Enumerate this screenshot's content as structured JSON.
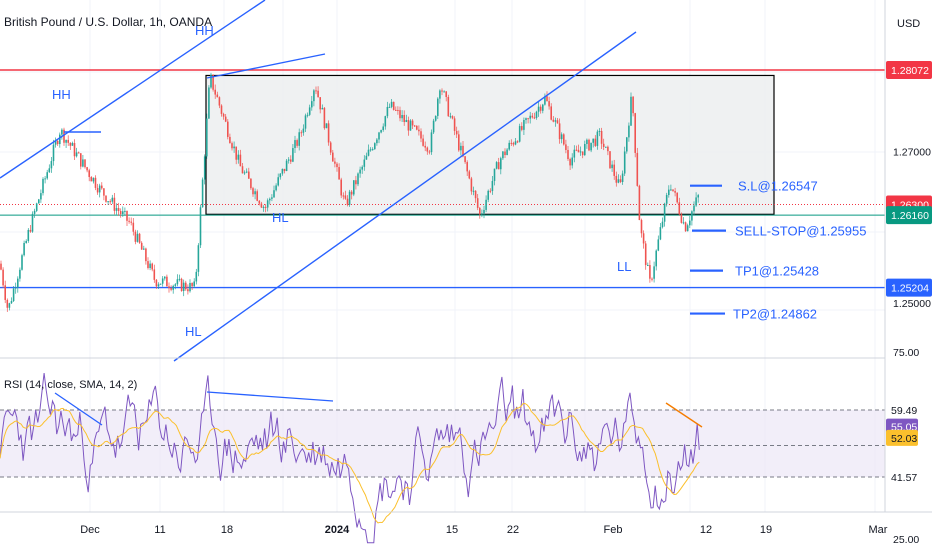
{
  "title": "British Pound / U.S. Dollar, 1h, OANDA",
  "currency": "USD",
  "colors": {
    "up": "#26a69a",
    "down": "#ef5350",
    "blue": "#2962ff",
    "resistance": "#f23645",
    "support": "#089981",
    "rsi_line": "#7e57c2",
    "rsi_ma": "#fbc02d",
    "divergence": "#f57c00",
    "box_fill": "#eceef0"
  },
  "chart_data": [
    {
      "type": "candlestick",
      "title": "British Pound / U.S. Dollar, 1h, OANDA",
      "x_ticks": [
        "Dec",
        "11",
        "18",
        "2024",
        "15",
        "22",
        "Feb",
        "12",
        "19",
        "Mar"
      ],
      "y_ticks": [
        "1.27000",
        "1.25000"
      ],
      "ylim": [
        1.244,
        1.288
      ],
      "key_levels": [
        {
          "label": "1.28072",
          "value": 1.28072,
          "color": "#f23645"
        },
        {
          "label": "1.26300",
          "value": 1.263,
          "color": "#f23645"
        },
        {
          "label": "1.26160",
          "value": 1.2616,
          "color": "#089981"
        },
        {
          "label": "1.25204",
          "value": 1.25204,
          "color": "#2962ff"
        }
      ],
      "trade_levels": [
        {
          "label": "S.L@1.26547",
          "value": 1.26547
        },
        {
          "label": "SELL-STOP@1.25955",
          "value": 1.25955
        },
        {
          "label": "TP1@1.25428",
          "value": 1.25428
        },
        {
          "label": "TP2@1.24862",
          "value": 1.24862
        }
      ],
      "annotations": [
        "HH",
        "HH",
        "HL",
        "HL",
        "LL"
      ],
      "range_box": {
        "top": 1.28,
        "bottom": 1.2617
      }
    },
    {
      "type": "line",
      "title": "RSI (14, close, SMA, 14, 2)",
      "series": [
        {
          "name": "RSI"
        },
        {
          "name": "RSI-based MA"
        }
      ],
      "y_ticks": [
        "75.00",
        "25.00"
      ],
      "levels": {
        "upper": 59.49,
        "lower": 41.57
      },
      "last_values": {
        "rsi": "55.05",
        "ma": "52.03"
      },
      "ylim": [
        20,
        80
      ]
    }
  ]
}
